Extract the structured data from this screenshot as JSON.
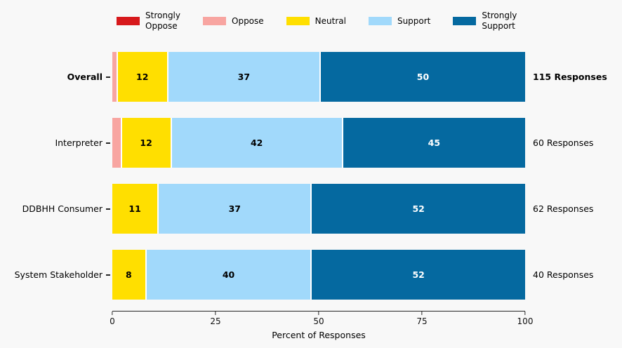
{
  "chart_data": {
    "type": "bar",
    "orientation": "horizontal",
    "stacked": true,
    "title": "",
    "xlabel": "Percent of Responses",
    "xlim": [
      0,
      100
    ],
    "xticks": [
      0,
      25,
      50,
      75,
      100
    ],
    "value_label_min": 4,
    "background": "#f8f8f8",
    "legend": [
      {
        "key": "strongly-oppose",
        "lines": [
          "Strongly",
          "Oppose"
        ],
        "color": "#d7191c",
        "value_text_color": "#000000"
      },
      {
        "key": "oppose",
        "lines": [
          "Oppose"
        ],
        "color": "#f8a5a1",
        "value_text_color": "#000000"
      },
      {
        "key": "neutral",
        "lines": [
          "Neutral"
        ],
        "color": "#ffdf00",
        "value_text_color": "#000000"
      },
      {
        "key": "support",
        "lines": [
          "Support"
        ],
        "color": "#a1d9fb",
        "value_text_color": "#000000"
      },
      {
        "key": "strongly-support",
        "lines": [
          "Strongly",
          "Support"
        ],
        "color": "#0569a0",
        "value_text_color": "#ffffff"
      }
    ],
    "rows": [
      {
        "label": "Overall",
        "emphasis": true,
        "responses": "115 Responses",
        "values": [
          0,
          1,
          12,
          37,
          50
        ]
      },
      {
        "label": "Interpreter",
        "emphasis": false,
        "responses": "60 Responses",
        "values": [
          0,
          2,
          12,
          42,
          45
        ]
      },
      {
        "label": "DDBHH Consumer",
        "emphasis": false,
        "responses": "62 Responses",
        "values": [
          0,
          0,
          11,
          37,
          52
        ]
      },
      {
        "label": "System Stakeholder",
        "emphasis": false,
        "responses": "40 Responses",
        "values": [
          0,
          0,
          8,
          40,
          52
        ]
      }
    ]
  }
}
